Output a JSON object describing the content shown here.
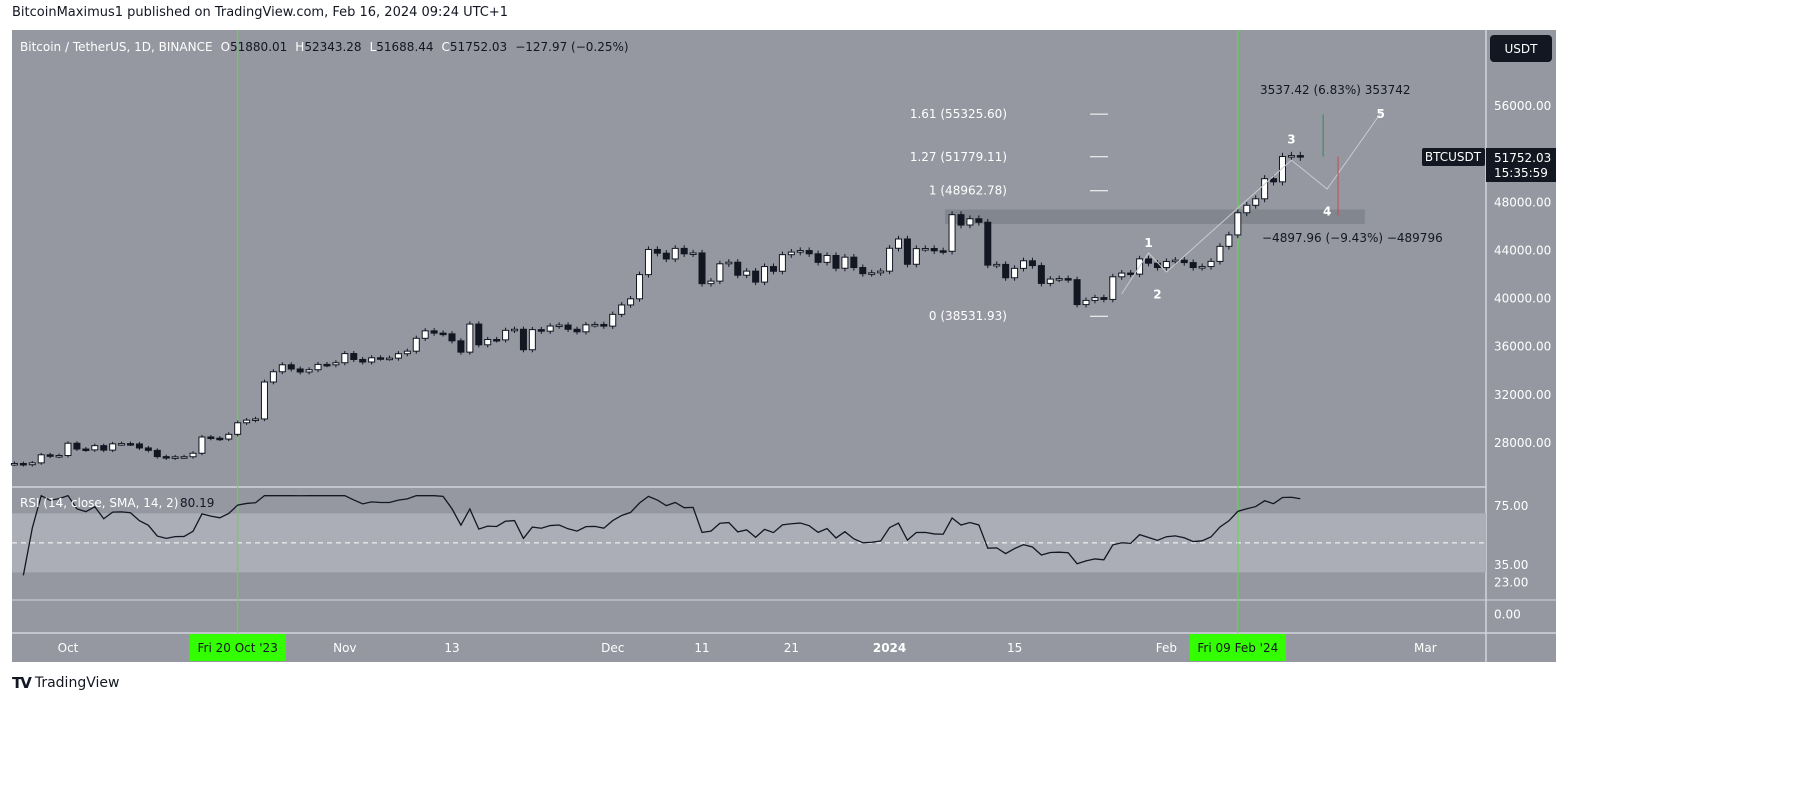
{
  "published": "BitcoinMaximus1 published on TradingView.com, Feb 16, 2024 09:24 UTC+1",
  "brand": "TradingView",
  "currency_button": "USDT",
  "colors": {
    "background": "#9598a1",
    "band": "#abaeb6",
    "bull": "#ffffff",
    "bear": "#131722",
    "highlight": "#33ff00",
    "label_bg": "#131722",
    "zone": "#7f828b"
  },
  "legend": {
    "symbol": "Bitcoin / TetherUS, 1D, BINANCE",
    "o_label": "O",
    "o": "51880.01",
    "h_label": "H",
    "h": "52343.28",
    "l_label": "L",
    "l": "51688.44",
    "c_label": "C",
    "c": "51752.03",
    "change": "−127.97 (−0.25%)"
  },
  "price_label": {
    "symbol": "BTCUSDT",
    "price": "51752.03",
    "countdown": "15:35:59"
  },
  "chart_data": {
    "type": "candlestick",
    "title": "Bitcoin / TetherUS, 1D, BINANCE",
    "y_ticks": [
      {
        "v": 56000,
        "t": "56000.00"
      },
      {
        "v": 48000,
        "t": "48000.00"
      },
      {
        "v": 44000,
        "t": "44000.00"
      },
      {
        "v": 40000,
        "t": "40000.00"
      },
      {
        "v": 36000,
        "t": "36000.00"
      },
      {
        "v": 32000,
        "t": "32000.00"
      },
      {
        "v": 28000,
        "t": "28000.00"
      }
    ],
    "x_ticks": [
      {
        "d": "2023-10-01",
        "t": "Oct"
      },
      {
        "d": "2023-11-01",
        "t": "Nov"
      },
      {
        "d": "2023-11-13",
        "t": "13"
      },
      {
        "d": "2023-12-01",
        "t": "Dec"
      },
      {
        "d": "2023-12-11",
        "t": "11"
      },
      {
        "d": "2023-12-21",
        "t": "21"
      },
      {
        "d": "2024-01-01",
        "t": "2024"
      },
      {
        "d": "2024-01-15",
        "t": "15"
      },
      {
        "d": "2024-02-01",
        "t": "Feb"
      },
      {
        "d": "2024-03-01",
        "t": "Mar"
      }
    ],
    "highlighted_dates": [
      {
        "d": "2023-10-20",
        "t": "Fri 20 Oct '23"
      },
      {
        "d": "2024-02-09",
        "t": "Fri 09 Feb '24"
      }
    ],
    "fib_levels": [
      {
        "v": 55325.6,
        "t": "1.61 (55325.60)"
      },
      {
        "v": 51779.11,
        "t": "1.27 (51779.11)"
      },
      {
        "v": 48962.78,
        "t": "1 (48962.78)"
      },
      {
        "v": 38531.93,
        "t": "0 (38531.93)"
      }
    ],
    "zone": {
      "from": "2024-01-08",
      "to": "2024-02-24",
      "low": 46200,
      "high": 47400
    },
    "waves": [
      {
        "t": "1",
        "d": "2024-01-30",
        "v": 44300
      },
      {
        "t": "2",
        "d": "2024-01-31",
        "v": 40000
      },
      {
        "t": "3",
        "d": "2024-02-15",
        "v": 52900
      },
      {
        "t": "4",
        "d": "2024-02-19",
        "v": 46900
      },
      {
        "t": "5",
        "d": "2024-02-25",
        "v": 55000
      }
    ],
    "wave_path": [
      {
        "d": "2024-01-27",
        "v": 40400
      },
      {
        "d": "2024-01-30",
        "v": 43800
      },
      {
        "d": "2024-02-01",
        "v": 42200
      },
      {
        "d": "2024-02-15",
        "v": 51500
      },
      {
        "d": "2024-02-19",
        "v": 49100
      },
      {
        "d": "2024-02-25",
        "v": 55400
      }
    ],
    "measures": [
      {
        "t": "3537.42 (6.83%) 353742",
        "d": "2024-02-19",
        "from": 51800,
        "to": 55300,
        "color": "#2e8b57"
      },
      {
        "t": "−4897.96 (−9.43%) −489796",
        "d": "2024-02-20",
        "from": 51800,
        "to": 46900,
        "color": "#c0504d"
      }
    ],
    "candles": [
      [
        "2023-09-25",
        26300
      ],
      [
        "2023-09-26",
        26200
      ],
      [
        "2023-09-27",
        26350
      ],
      [
        "2023-09-28",
        27020
      ],
      [
        "2023-09-29",
        26900
      ],
      [
        "2023-09-30",
        26960
      ],
      [
        "2023-10-01",
        27980
      ],
      [
        "2023-10-02",
        27500
      ],
      [
        "2023-10-03",
        27430
      ],
      [
        "2023-10-04",
        27780
      ],
      [
        "2023-10-05",
        27410
      ],
      [
        "2023-10-06",
        27930
      ],
      [
        "2023-10-07",
        27950
      ],
      [
        "2023-10-08",
        27920
      ],
      [
        "2023-10-09",
        27590
      ],
      [
        "2023-10-10",
        27390
      ],
      [
        "2023-10-11",
        26870
      ],
      [
        "2023-10-12",
        26750
      ],
      [
        "2023-10-13",
        26850
      ],
      [
        "2023-10-14",
        26860
      ],
      [
        "2023-10-15",
        27150
      ],
      [
        "2023-10-16",
        28500
      ],
      [
        "2023-10-17",
        28400
      ],
      [
        "2023-10-18",
        28330
      ],
      [
        "2023-10-19",
        28720
      ],
      [
        "2023-10-20",
        29680
      ],
      [
        "2023-10-21",
        29900
      ],
      [
        "2023-10-22",
        30000
      ],
      [
        "2023-10-23",
        33070
      ],
      [
        "2023-10-24",
        33920
      ],
      [
        "2023-10-25",
        34500
      ],
      [
        "2023-10-26",
        34150
      ],
      [
        "2023-10-27",
        33900
      ],
      [
        "2023-10-28",
        34090
      ],
      [
        "2023-10-29",
        34530
      ],
      [
        "2023-10-30",
        34500
      ],
      [
        "2023-10-31",
        34670
      ],
      [
        "2023-11-01",
        35430
      ],
      [
        "2023-11-02",
        34940
      ],
      [
        "2023-11-03",
        34730
      ],
      [
        "2023-11-04",
        35080
      ],
      [
        "2023-11-05",
        35050
      ],
      [
        "2023-11-06",
        35050
      ],
      [
        "2023-11-07",
        35420
      ],
      [
        "2023-11-08",
        35630
      ],
      [
        "2023-11-09",
        36700
      ],
      [
        "2023-11-10",
        37320
      ],
      [
        "2023-11-11",
        37130
      ],
      [
        "2023-11-12",
        37070
      ],
      [
        "2023-11-13",
        36490
      ],
      [
        "2023-11-14",
        35550
      ],
      [
        "2023-11-15",
        37880
      ],
      [
        "2023-11-16",
        36160
      ],
      [
        "2023-11-17",
        36600
      ],
      [
        "2023-11-18",
        36570
      ],
      [
        "2023-11-19",
        37360
      ],
      [
        "2023-11-20",
        37450
      ],
      [
        "2023-11-21",
        35750
      ],
      [
        "2023-11-22",
        37420
      ],
      [
        "2023-11-23",
        37290
      ],
      [
        "2023-11-24",
        37720
      ],
      [
        "2023-11-25",
        37800
      ],
      [
        "2023-11-26",
        37450
      ],
      [
        "2023-11-27",
        37240
      ],
      [
        "2023-11-28",
        37820
      ],
      [
        "2023-11-29",
        37850
      ],
      [
        "2023-11-30",
        37710
      ],
      [
        "2023-12-01",
        38690
      ],
      [
        "2023-12-02",
        39470
      ],
      [
        "2023-12-03",
        39980
      ],
      [
        "2023-12-04",
        41990
      ],
      [
        "2023-12-05",
        44080
      ],
      [
        "2023-12-06",
        43770
      ],
      [
        "2023-12-07",
        43290
      ],
      [
        "2023-12-08",
        44170
      ],
      [
        "2023-12-09",
        43720
      ],
      [
        "2023-12-10",
        43790
      ],
      [
        "2023-12-11",
        41240
      ],
      [
        "2023-12-12",
        41450
      ],
      [
        "2023-12-13",
        42890
      ],
      [
        "2023-12-14",
        43020
      ],
      [
        "2023-12-15",
        41940
      ],
      [
        "2023-12-16",
        42280
      ],
      [
        "2023-12-17",
        41370
      ],
      [
        "2023-12-18",
        42660
      ],
      [
        "2023-12-19",
        42270
      ],
      [
        "2023-12-20",
        43650
      ],
      [
        "2023-12-21",
        43860
      ],
      [
        "2023-12-22",
        43990
      ],
      [
        "2023-12-23",
        43720
      ],
      [
        "2023-12-24",
        43010
      ],
      [
        "2023-12-25",
        43580
      ],
      [
        "2023-12-26",
        42520
      ],
      [
        "2023-12-27",
        43440
      ],
      [
        "2023-12-28",
        42580
      ],
      [
        "2023-12-29",
        42070
      ],
      [
        "2023-12-30",
        42140
      ],
      [
        "2023-12-31",
        42280
      ],
      [
        "2024-01-01",
        44180
      ],
      [
        "2024-01-02",
        44950
      ],
      [
        "2024-01-03",
        42850
      ],
      [
        "2024-01-04",
        44150
      ],
      [
        "2024-01-05",
        44160
      ],
      [
        "2024-01-06",
        43970
      ],
      [
        "2024-01-07",
        43930
      ],
      [
        "2024-01-08",
        46970
      ],
      [
        "2024-01-09",
        46110
      ],
      [
        "2024-01-10",
        46630
      ],
      [
        "2024-01-11",
        46340
      ],
      [
        "2024-01-12",
        42780
      ],
      [
        "2024-01-13",
        42840
      ],
      [
        "2024-01-14",
        41730
      ],
      [
        "2024-01-15",
        42510
      ],
      [
        "2024-01-16",
        43140
      ],
      [
        "2024-01-17",
        42740
      ],
      [
        "2024-01-18",
        41260
      ],
      [
        "2024-01-19",
        41620
      ],
      [
        "2024-01-20",
        41660
      ],
      [
        "2024-01-21",
        41570
      ],
      [
        "2024-01-22",
        39500
      ],
      [
        "2024-01-23",
        39850
      ],
      [
        "2024-01-24",
        40080
      ],
      [
        "2024-01-25",
        39930
      ],
      [
        "2024-01-26",
        41810
      ],
      [
        "2024-01-27",
        42120
      ],
      [
        "2024-01-28",
        42030
      ],
      [
        "2024-01-29",
        43300
      ],
      [
        "2024-01-30",
        42940
      ],
      [
        "2024-01-31",
        42580
      ],
      [
        "2024-02-01",
        43080
      ],
      [
        "2024-02-02",
        43190
      ],
      [
        "2024-02-03",
        42990
      ],
      [
        "2024-02-04",
        42580
      ],
      [
        "2024-02-05",
        42660
      ],
      [
        "2024-02-06",
        43090
      ],
      [
        "2024-02-07",
        44340
      ],
      [
        "2024-02-08",
        45290
      ],
      [
        "2024-02-09",
        47130
      ],
      [
        "2024-02-10",
        47750
      ],
      [
        "2024-02-11",
        48290
      ],
      [
        "2024-02-12",
        49960
      ],
      [
        "2024-02-13",
        49700
      ],
      [
        "2024-02-14",
        51800
      ],
      [
        "2024-02-15",
        51880
      ],
      [
        "2024-02-16",
        51752
      ]
    ],
    "rsi": {
      "label": "RSI (14, close, SMA, 14, 2)",
      "value": "80.19",
      "y_ticks": [
        {
          "v": 75,
          "t": "75.00"
        },
        {
          "v": 35,
          "t": "35.00"
        },
        {
          "v": 23,
          "t": "23.00"
        },
        {
          "v": 0,
          "t": "0.00"
        }
      ],
      "upper_band": 70,
      "lower_band": 30,
      "middle": 50
    }
  }
}
